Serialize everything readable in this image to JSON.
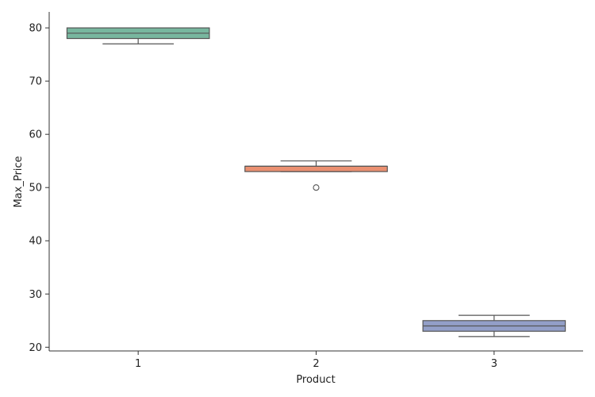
{
  "chart_data": {
    "type": "box",
    "xlabel": "Product",
    "ylabel": "Max_Price",
    "ylim": [
      19.3,
      83
    ],
    "yticks": [
      20,
      30,
      40,
      50,
      60,
      70,
      80
    ],
    "grid": false,
    "categories": [
      "1",
      "2",
      "3"
    ],
    "boxes": [
      {
        "category": "1",
        "whisker_low": 77,
        "q1": 78,
        "median": 79,
        "q3": 80,
        "whisker_high": 80,
        "outliers": [],
        "color": "#78b79f"
      },
      {
        "category": "2",
        "whisker_low": 53,
        "q1": 53,
        "median": 54,
        "q3": 54,
        "whisker_high": 55,
        "outliers": [
          50
        ],
        "color": "#ea9071"
      },
      {
        "category": "3",
        "whisker_low": 22,
        "q1": 23,
        "median": 24,
        "q3": 25,
        "whisker_high": 26,
        "outliers": [],
        "color": "#939fc8"
      }
    ]
  }
}
